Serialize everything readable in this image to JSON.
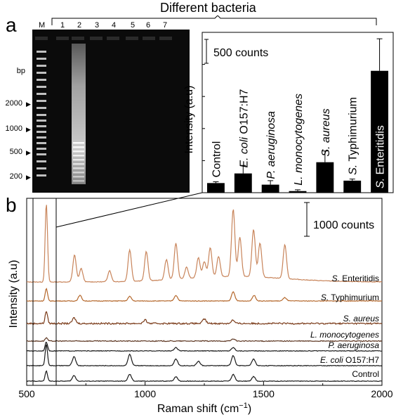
{
  "header": {
    "title": "Different bacteria"
  },
  "panel_a": {
    "letter": "a",
    "gel": {
      "marker_label": "M",
      "lanes": [
        "1",
        "2",
        "3",
        "4",
        "5",
        "6",
        "7"
      ],
      "bp_unit": "bp",
      "bp_marks": [
        "2000",
        "1000",
        "500",
        "200"
      ]
    }
  },
  "panel_b": {
    "letter": "b"
  },
  "chart_data": [
    {
      "type": "bar",
      "title": "",
      "ylabel": "Intensity (a.u)",
      "scale_bar": "500 counts",
      "categories": [
        "Control",
        "E. coli O157:H7",
        "P. aeruginosa",
        "L. monocytogenes",
        "S. aureus",
        "S. Typhimurium",
        "S. Enteritidis"
      ],
      "category_labels": [
        {
          "italic": "",
          "plain": "Control"
        },
        {
          "italic": "E. coli",
          "plain": " O157:H7"
        },
        {
          "italic": "P. aeruginosa",
          "plain": ""
        },
        {
          "italic": "L. monocytogenes",
          "plain": ""
        },
        {
          "italic": "S. aureus",
          "plain": ""
        },
        {
          "italic": "S.",
          "plain": " Typhimurium"
        },
        {
          "italic": "S.",
          "plain": " Enteritidis"
        }
      ],
      "values": [
        60,
        120,
        50,
        10,
        190,
        75,
        760
      ],
      "errors": [
        8,
        50,
        25,
        8,
        70,
        10,
        200
      ],
      "ylim": [
        0,
        1000
      ],
      "bar_color": "#000000"
    },
    {
      "type": "line",
      "title": "",
      "xlabel": "Raman shift (cm−1)",
      "xlabel_parts": {
        "main": "Raman shift (cm",
        "sup": "−1",
        "end": ")"
      },
      "ylabel": "Intensity (a.u)",
      "scale_bar": "1000 counts",
      "xlim": [
        500,
        2000
      ],
      "xticks": [
        "500",
        "1000",
        "1500",
        "2000"
      ],
      "series": [
        {
          "name": "S. Enteritidis",
          "italic": "S.",
          "plain": " Enteritidis",
          "color": "#c8845a",
          "peaks": [
            [
              583,
              7.0
            ],
            [
              702,
              2.4
            ],
            [
              730,
              1.2
            ],
            [
              850,
              1.0
            ],
            [
              935,
              2.8
            ],
            [
              1005,
              2.6
            ],
            [
              1090,
              1.8
            ],
            [
              1130,
              3.2
            ],
            [
              1175,
              1.0
            ],
            [
              1225,
              1.8
            ],
            [
              1250,
              1.4
            ],
            [
              1275,
              2.6
            ],
            [
              1310,
              1.8
            ],
            [
              1372,
              6.0
            ],
            [
              1400,
              3.5
            ],
            [
              1458,
              4.2
            ],
            [
              1485,
              3.0
            ],
            [
              1590,
              3.0
            ]
          ]
        },
        {
          "name": "S. Typhimurium",
          "italic": "S.",
          "plain": " Typhimurium",
          "color": "#b5682c",
          "peaks": [
            [
              583,
              1.1
            ],
            [
              725,
              0.5
            ],
            [
              935,
              0.4
            ],
            [
              1130,
              0.5
            ],
            [
              1372,
              0.8
            ],
            [
              1460,
              0.5
            ],
            [
              1590,
              0.3
            ]
          ]
        },
        {
          "name": "S. aureus",
          "italic": "S. aureus",
          "plain": "",
          "color": "#7a3a18",
          "peaks": [
            [
              583,
              1.1
            ],
            [
              700,
              0.5
            ],
            [
              1000,
              0.3
            ],
            [
              1250,
              0.4
            ],
            [
              1370,
              0.3
            ]
          ]
        },
        {
          "name": "L. monocytogenes",
          "italic": "L. monocytogenes",
          "plain": "",
          "color": "#5c3520",
          "peaks": [
            [
              583,
              0.3
            ],
            [
              1372,
              0.2
            ]
          ]
        },
        {
          "name": "P. aeruginosa",
          "italic": "P. aeruginosa",
          "plain": "",
          "color": "#1a1a1a",
          "peaks": [
            [
              583,
              0.8
            ],
            [
              1130,
              0.3
            ],
            [
              1372,
              0.3
            ]
          ]
        },
        {
          "name": "E. coli O157:H7",
          "italic": "E. coli",
          "plain": " O157:H7",
          "color": "#1a1a1a",
          "peaks": [
            [
              583,
              1.9
            ],
            [
              700,
              0.8
            ],
            [
              935,
              1.0
            ],
            [
              1130,
              0.6
            ],
            [
              1225,
              0.4
            ],
            [
              1372,
              0.9
            ],
            [
              1458,
              0.6
            ]
          ]
        },
        {
          "name": "Control",
          "italic": "",
          "plain": "Control",
          "color": "#1a1a1a",
          "peaks": [
            [
              583,
              0.9
            ],
            [
              700,
              0.5
            ],
            [
              935,
              0.6
            ],
            [
              1130,
              0.4
            ],
            [
              1372,
              0.6
            ],
            [
              1458,
              0.4
            ]
          ]
        }
      ]
    }
  ]
}
